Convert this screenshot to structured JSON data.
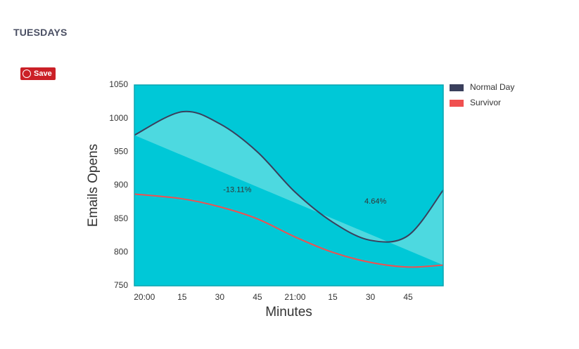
{
  "header": {
    "title": "TUESDAYS",
    "save_button": "Save"
  },
  "chart_data": {
    "type": "line",
    "x_label": "Minutes",
    "y_label": "Emails Opens",
    "x": [
      -4,
      15,
      30,
      45,
      60,
      75,
      90,
      105,
      119
    ],
    "series": [
      {
        "name": "Normal Day",
        "color": "#3a3f5c",
        "values": [
          975,
          1010,
          992,
          950,
          890,
          845,
          818,
          825,
          893
        ]
      },
      {
        "name": "Survivor",
        "color": "#f05050",
        "values": [
          887,
          880,
          868,
          850,
          823,
          800,
          785,
          778,
          781
        ]
      }
    ],
    "annotations": [
      {
        "text": "-13.11%",
        "x": 37,
        "y": 893
      },
      {
        "text": "4.64%",
        "x": 92,
        "y": 876
      }
    ],
    "background": "#00c8d7",
    "fill_between": "#4dd9e0",
    "xlim": [
      -4,
      119
    ],
    "xticks": [
      {
        "value": 0,
        "label": "20:00"
      },
      15,
      30,
      45,
      {
        "value": 60,
        "label": "21:00"
      },
      {
        "value": 75,
        "label": "15"
      },
      {
        "value": 90,
        "label": "30"
      },
      {
        "value": 105,
        "label": "45"
      }
    ],
    "ylim": [
      750,
      1050
    ],
    "yticks": [
      750,
      800,
      850,
      900,
      950,
      1000,
      1050
    ],
    "legend": "right"
  }
}
